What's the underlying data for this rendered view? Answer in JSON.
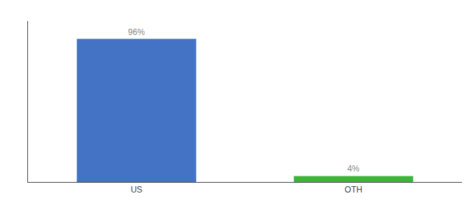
{
  "chart_data": {
    "type": "bar",
    "categories": [
      "US",
      "OTH"
    ],
    "values": [
      96,
      4
    ],
    "value_labels": [
      "96%",
      "4%"
    ],
    "colors": [
      "#4472c4",
      "#3db53d"
    ],
    "ylim": [
      0,
      108
    ],
    "grid": false,
    "data_labels": true,
    "tick_labels": "x"
  }
}
